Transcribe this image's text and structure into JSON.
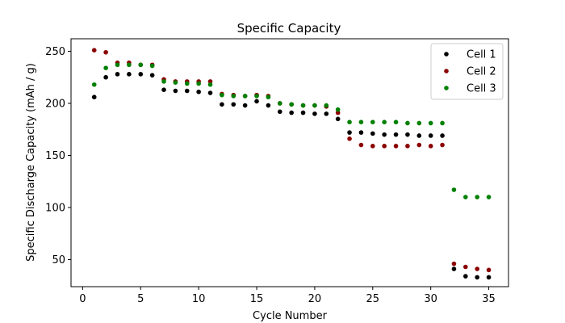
{
  "chart_data": {
    "type": "scatter",
    "title": "Specific Capacity",
    "xlabel": "Cycle Number",
    "ylabel": "Specific Discharge Capacity (mAh / g)",
    "xlim": [
      -1,
      36.7
    ],
    "ylim": [
      24,
      262
    ],
    "xticks": [
      0,
      5,
      10,
      15,
      20,
      25,
      30,
      35
    ],
    "yticks": [
      50,
      100,
      150,
      200,
      250
    ],
    "grid": false,
    "legend_position": "top-right",
    "series": [
      {
        "name": "Cell 1",
        "color": "#000000",
        "x": [
          1,
          2,
          3,
          4,
          5,
          6,
          7,
          8,
          9,
          10,
          11,
          12,
          13,
          14,
          15,
          16,
          17,
          18,
          19,
          20,
          21,
          22,
          23,
          24,
          25,
          26,
          27,
          28,
          29,
          30,
          31,
          32,
          33,
          34,
          35
        ],
        "y": [
          206,
          225,
          228,
          228,
          228,
          227,
          213,
          212,
          212,
          211,
          210,
          199,
          199,
          198,
          202,
          198,
          192,
          191,
          191,
          190,
          190,
          185,
          172,
          172,
          171,
          170,
          170,
          170,
          169,
          169,
          169,
          41,
          34,
          33,
          33
        ]
      },
      {
        "name": "Cell 2",
        "color": "#8b0000",
        "x": [
          1,
          2,
          3,
          4,
          5,
          6,
          7,
          8,
          9,
          10,
          11,
          12,
          13,
          14,
          15,
          16,
          17,
          18,
          19,
          20,
          21,
          22,
          23,
          24,
          25,
          26,
          27,
          28,
          29,
          30,
          31,
          32,
          33,
          34,
          35
        ],
        "y": [
          251,
          249,
          239,
          239,
          237,
          237,
          223,
          221,
          221,
          221,
          221,
          209,
          208,
          207,
          208,
          207,
          200,
          199,
          198,
          198,
          197,
          191,
          166,
          160,
          159,
          159,
          159,
          159,
          160,
          159,
          160,
          46,
          43,
          41,
          40
        ]
      },
      {
        "name": "Cell 3",
        "color": "#008000",
        "x": [
          1,
          2,
          3,
          4,
          5,
          6,
          7,
          8,
          9,
          10,
          11,
          12,
          13,
          14,
          15,
          16,
          17,
          18,
          19,
          20,
          21,
          22,
          23,
          24,
          25,
          26,
          27,
          28,
          29,
          30,
          31,
          32,
          33,
          34,
          35
        ],
        "y": [
          218,
          234,
          237,
          237,
          237,
          236,
          221,
          220,
          219,
          219,
          218,
          208,
          207,
          207,
          207,
          206,
          200,
          199,
          198,
          198,
          198,
          194,
          182,
          182,
          182,
          182,
          182,
          181,
          181,
          181,
          181,
          117,
          110,
          110,
          110
        ]
      }
    ]
  }
}
